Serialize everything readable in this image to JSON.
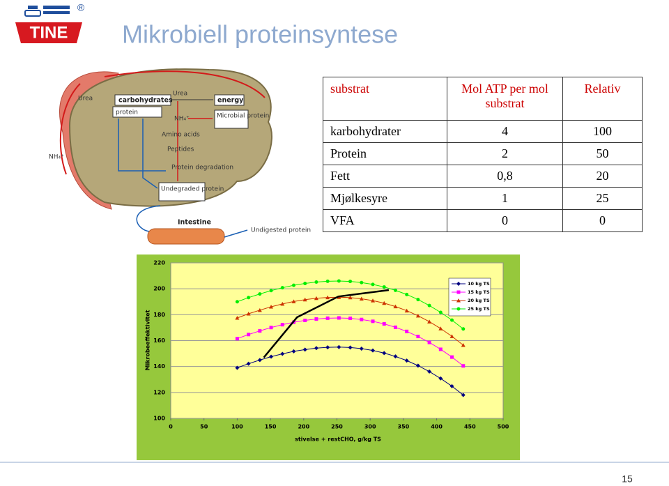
{
  "header": {
    "brand": "TINE",
    "registered": "®",
    "title": "Mikrobiell proteinsyntese"
  },
  "diagram": {
    "labels": [
      "carbohydrates",
      "protein",
      "energy",
      "Urea",
      "NH₄⁺",
      "Microbial protein",
      "Amino acids",
      "Peptides",
      "Protein degradation",
      "Undegraded protein",
      "Intestine",
      "Undigested protein",
      "Urea",
      "NH₄⁺"
    ]
  },
  "table": {
    "header": [
      "substrat",
      "Mol ATP per mol substrat",
      "Relativ"
    ],
    "rows": [
      [
        "karbohydrater",
        4,
        100
      ],
      [
        "Protein",
        2,
        50
      ],
      [
        "Fett",
        "0,8",
        20
      ],
      [
        "Mjølkesyre",
        1,
        25
      ],
      [
        "VFA",
        0,
        0
      ]
    ]
  },
  "chart_data": {
    "type": "line",
    "xlabel": "stivelse + restCHO, g/kg TS",
    "ylabel": "Mikrobeeffektivitet",
    "x": [
      100,
      117,
      134,
      151,
      168,
      185,
      202,
      219,
      236,
      253,
      270,
      287,
      304,
      321,
      338,
      355,
      372,
      389,
      406,
      423,
      440
    ],
    "series": [
      {
        "name": "10 kg TS",
        "color": "#000080",
        "marker": "diamond",
        "values": [
          139.0,
          142.2,
          145.0,
          147.6,
          149.8,
          151.7,
          153.1,
          154.2,
          154.8,
          155.0,
          154.7,
          153.8,
          152.4,
          150.4,
          147.8,
          144.6,
          140.7,
          136.1,
          130.8,
          124.8,
          118.0
        ]
      },
      {
        "name": "15 kg TS",
        "color": "#ff00ff",
        "marker": "square",
        "values": [
          161.5,
          164.7,
          167.5,
          170.1,
          172.3,
          174.2,
          175.6,
          176.7,
          177.3,
          177.5,
          177.2,
          176.3,
          174.9,
          172.9,
          170.3,
          167.1,
          163.2,
          158.6,
          153.3,
          147.3,
          140.5
        ]
      },
      {
        "name": "20 kg TS",
        "color": "#cc3300",
        "marker": "triangle",
        "values": [
          177.5,
          180.7,
          183.5,
          186.1,
          188.3,
          190.2,
          191.6,
          192.7,
          193.3,
          193.5,
          193.2,
          192.3,
          190.9,
          188.9,
          186.3,
          183.1,
          179.2,
          174.6,
          169.3,
          163.3,
          156.5
        ]
      },
      {
        "name": "25 kg TS",
        "color": "#00ee00",
        "marker": "circle",
        "values": [
          190.0,
          193.2,
          196.0,
          198.6,
          200.8,
          202.7,
          204.1,
          205.2,
          205.8,
          206.0,
          205.7,
          204.8,
          203.4,
          201.4,
          198.8,
          195.6,
          191.7,
          187.1,
          181.8,
          175.8,
          169.0
        ]
      },
      {
        "color": "#000000",
        "marker": "none",
        "x": [
          140,
          190,
          252,
          328
        ],
        "values": [
          147,
          178,
          194,
          199
        ]
      }
    ],
    "xlim": [
      0,
      500
    ],
    "xticks": [
      0,
      50,
      100,
      150,
      200,
      250,
      300,
      350,
      400,
      450,
      500
    ],
    "ylim": [
      100,
      220
    ],
    "yticks": [
      100,
      120,
      140,
      160,
      180,
      200,
      220
    ],
    "grid": true,
    "legend": "top-right"
  },
  "footer": {
    "page": 15
  }
}
